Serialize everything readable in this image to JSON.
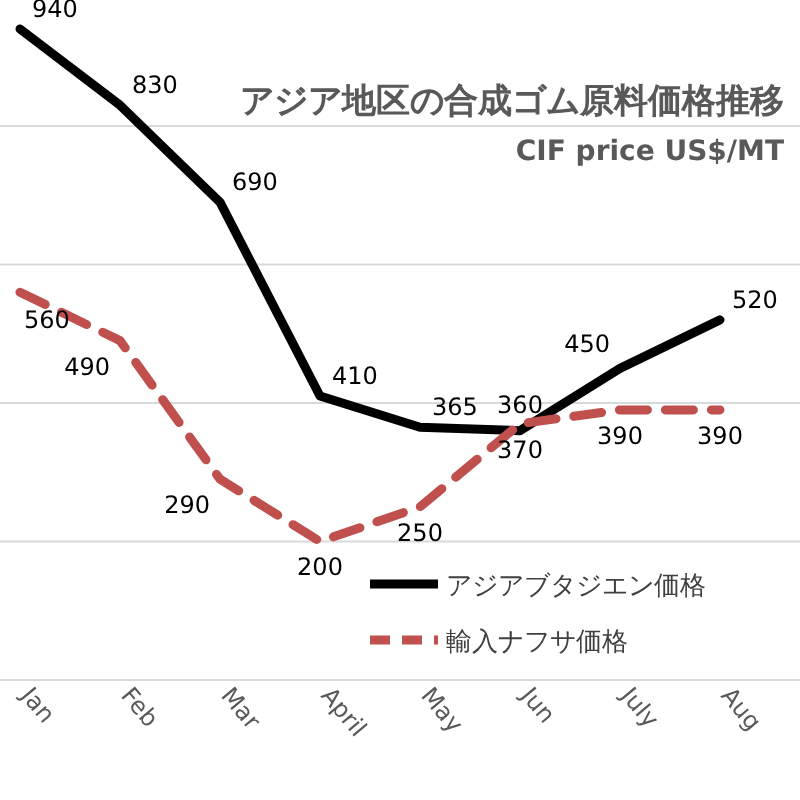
{
  "chart_data": {
    "type": "line",
    "title": "アジア地区の合成ゴム原料価格推移",
    "subtitle": "CIF price US$/MT",
    "categories": [
      "Jan",
      "Feb",
      "Mar",
      "April",
      "May",
      "Jun",
      "July",
      "Aug"
    ],
    "series": [
      {
        "name": "アジアブタジエン価格",
        "color": "#000000",
        "line_style": "solid",
        "values": [
          940,
          830,
          690,
          410,
          365,
          360,
          450,
          520
        ]
      },
      {
        "name": "輸入ナフサ価格",
        "color": "#c0504d",
        "line_style": "dashed",
        "values": [
          560,
          490,
          290,
          200,
          250,
          370,
          390,
          390
        ]
      }
    ],
    "yticks": [
      {
        "value": 0,
        "label": null
      },
      {
        "value": 200,
        "label": null
      },
      {
        "value": 400,
        "label": null
      },
      {
        "value": 600,
        "label": null
      },
      {
        "value": 800,
        "label": null
      }
    ],
    "grid": "y",
    "legend": "bottom right",
    "data_labels": true,
    "tick_labels": "x"
  }
}
